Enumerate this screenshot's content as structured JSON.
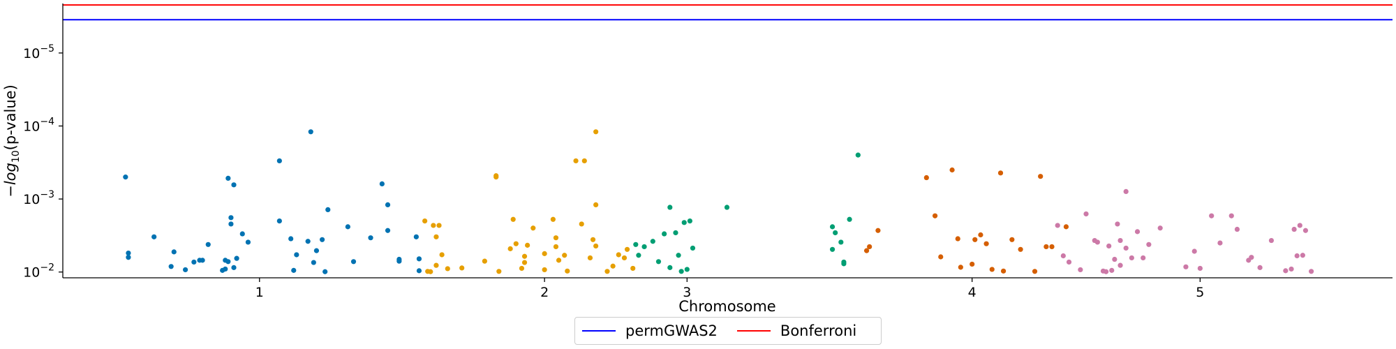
{
  "chart_data": {
    "type": "scatter",
    "xlabel": "Chromosome",
    "ylabel_parts": [
      "−",
      "log",
      "10",
      "(p-value)"
    ],
    "y_scale": "log",
    "y_inverted": true,
    "ylim": [
      0.012,
      2.1e-06
    ],
    "y_ticks": [
      {
        "value": 1e-05,
        "label_base": "10",
        "label_exp": "−5"
      },
      {
        "value": 0.0001,
        "label_base": "10",
        "label_exp": "−4"
      },
      {
        "value": 0.001,
        "label_base": "10",
        "label_exp": "−3"
      },
      {
        "value": 0.01,
        "label_base": "10",
        "label_exp": "−2"
      }
    ],
    "xlim": [
      -0.69,
      3.975
    ],
    "x_ticks": [
      {
        "value": 0,
        "label": "1"
      },
      {
        "value": 1,
        "label": "2"
      },
      {
        "value": 1.5,
        "label": "3"
      },
      {
        "value": 2.5,
        "label": "4"
      },
      {
        "value": 3.3,
        "label": "5"
      }
    ],
    "grid": false,
    "legend_position": "bottom-center",
    "thresholds": [
      {
        "name": "permGWAS2",
        "value": 3.5e-06,
        "color": "#0000ff"
      },
      {
        "name": "Bonferroni",
        "value": 2.2e-06,
        "color": "#ff0000"
      }
    ],
    "series": [
      {
        "chromosome": "1",
        "color": "#0072b2",
        "x": [
          -0.47,
          -0.46,
          -0.46,
          -0.37,
          -0.31,
          -0.3,
          -0.26,
          -0.23,
          -0.21,
          -0.2,
          -0.18,
          -0.13,
          -0.12,
          -0.12,
          -0.11,
          -0.11,
          -0.1,
          -0.1,
          -0.09,
          -0.09,
          -0.08,
          -0.06,
          -0.04,
          0.07,
          0.07,
          0.11,
          0.12,
          0.13,
          0.17,
          0.18,
          0.19,
          0.2,
          0.22,
          0.23,
          0.24,
          0.31,
          0.33,
          0.39,
          0.43,
          0.45,
          0.45,
          0.49,
          0.49,
          0.55,
          0.56,
          0.56
        ],
        "y": [
          0.0005,
          0.0055,
          0.0063,
          0.0033,
          0.0084,
          0.0053,
          0.0093,
          0.0073,
          0.0069,
          0.0069,
          0.0042,
          0.0095,
          0.0091,
          0.0069,
          0.00052,
          0.0072,
          0.0022,
          0.0018,
          0.00064,
          0.0087,
          0.0065,
          0.003,
          0.0039,
          0.0003,
          0.002,
          0.0035,
          0.0095,
          0.0058,
          0.0038,
          0.00012,
          0.0074,
          0.0051,
          0.0036,
          0.0099,
          0.0014,
          0.0024,
          0.0072,
          0.0034,
          0.00062,
          0.0027,
          0.0012,
          0.0067,
          0.0071,
          0.0033,
          0.0066,
          0.0096
        ]
      },
      {
        "chromosome": "2",
        "color": "#e69f00",
        "x": [
          0.58,
          0.59,
          0.6,
          0.61,
          0.62,
          0.62,
          0.63,
          0.64,
          0.66,
          0.71,
          0.79,
          0.83,
          0.84,
          0.88,
          0.89,
          0.9,
          0.92,
          0.93,
          0.93,
          0.94,
          0.96,
          1.0,
          1.0,
          1.03,
          1.04,
          1.04,
          1.05,
          1.07,
          1.08,
          1.13,
          1.14,
          1.16,
          1.17,
          1.18,
          1.18,
          1.22,
          1.24,
          1.26,
          1.28,
          1.29,
          1.31
        ],
        "y": [
          0.002,
          0.0098,
          0.0099,
          0.0023,
          0.0081,
          0.0033,
          0.0023,
          0.0058,
          0.009,
          0.0088,
          0.0071,
          0.0005,
          0.0098,
          0.0048,
          0.0019,
          0.0041,
          0.0089,
          0.0061,
          0.0074,
          0.0043,
          0.0025,
          0.0056,
          0.0093,
          0.0019,
          0.0034,
          0.0045,
          0.0069,
          0.0059,
          0.0097,
          0.0022,
          0.0003,
          0.0064,
          0.0036,
          0.0044,
          0.0012,
          0.0098,
          0.0083,
          0.0058,
          0.0064,
          0.0049,
          0.0089
        ],
        "x_extra": [
          0.83,
          1.11,
          1.18
        ],
        "y_extra": [
          0.00048,
          0.0003,
          0.00012
        ]
      },
      {
        "chromosome": "3",
        "color": "#009e73",
        "x": [
          1.32,
          1.33,
          1.35,
          1.38,
          1.4,
          1.42,
          1.44,
          1.44,
          1.46,
          1.47,
          1.48,
          1.49,
          1.5,
          1.51,
          1.52,
          1.64,
          2.01,
          2.01,
          2.02,
          2.04,
          2.05,
          2.05,
          2.07,
          2.1
        ],
        "y": [
          0.0042,
          0.0059,
          0.0045,
          0.0038,
          0.0072,
          0.003,
          0.0087,
          0.0013,
          0.0029,
          0.0059,
          0.0098,
          0.0021,
          0.0092,
          0.002,
          0.0047,
          0.0013,
          0.0024,
          0.0049,
          0.0029,
          0.0039,
          0.0073,
          0.0077,
          0.0019,
          0.00025
        ],
        "x_extra": [],
        "y_extra": []
      },
      {
        "chromosome": "4",
        "color": "#d55e00",
        "x": [
          2.13,
          2.14,
          2.17,
          2.34,
          2.37,
          2.39,
          2.43,
          2.45,
          2.46,
          2.5,
          2.51,
          2.53,
          2.55,
          2.57,
          2.6,
          2.61,
          2.64,
          2.67,
          2.72,
          2.74,
          2.76,
          2.78,
          2.83
        ],
        "y": [
          0.0051,
          0.0045,
          0.0027,
          0.00051,
          0.0017,
          0.0062,
          0.0004,
          0.0035,
          0.0086,
          0.0078,
          0.0036,
          0.0031,
          0.0041,
          0.0092,
          0.00044,
          0.0097,
          0.0036,
          0.0049,
          0.0098,
          0.00049,
          0.0045,
          0.0045,
          0.0024
        ],
        "x_extra": [],
        "y_extra": []
      },
      {
        "chromosome": "5",
        "color": "#cc79a7",
        "x": [
          2.8,
          2.82,
          2.84,
          2.88,
          2.9,
          2.93,
          2.94,
          2.96,
          2.97,
          2.98,
          2.99,
          3.0,
          3.01,
          3.02,
          3.02,
          3.04,
          3.04,
          3.06,
          3.08,
          3.1,
          3.12,
          3.16,
          3.25,
          3.28,
          3.3,
          3.34,
          3.37,
          3.41,
          3.43,
          3.47,
          3.48,
          3.51,
          3.55,
          3.6,
          3.62,
          3.63,
          3.64,
          3.65,
          3.66,
          3.67,
          3.69
        ],
        "y": [
          0.0023,
          0.006,
          0.0073,
          0.0093,
          0.0016,
          0.0037,
          0.0039,
          0.0097,
          0.0099,
          0.0044,
          0.0095,
          0.0067,
          0.0022,
          0.0081,
          0.0037,
          0.0047,
          0.00079,
          0.0064,
          0.0028,
          0.0064,
          0.0042,
          0.0025,
          0.0085,
          0.0052,
          0.0089,
          0.0017,
          0.004,
          0.0017,
          0.0026,
          0.0069,
          0.0063,
          0.0087,
          0.0037,
          0.0096,
          0.0091,
          0.0026,
          0.006,
          0.0023,
          0.0059,
          0.0027,
          0.0098
        ],
        "x_extra": [],
        "y_extra": []
      }
    ]
  }
}
